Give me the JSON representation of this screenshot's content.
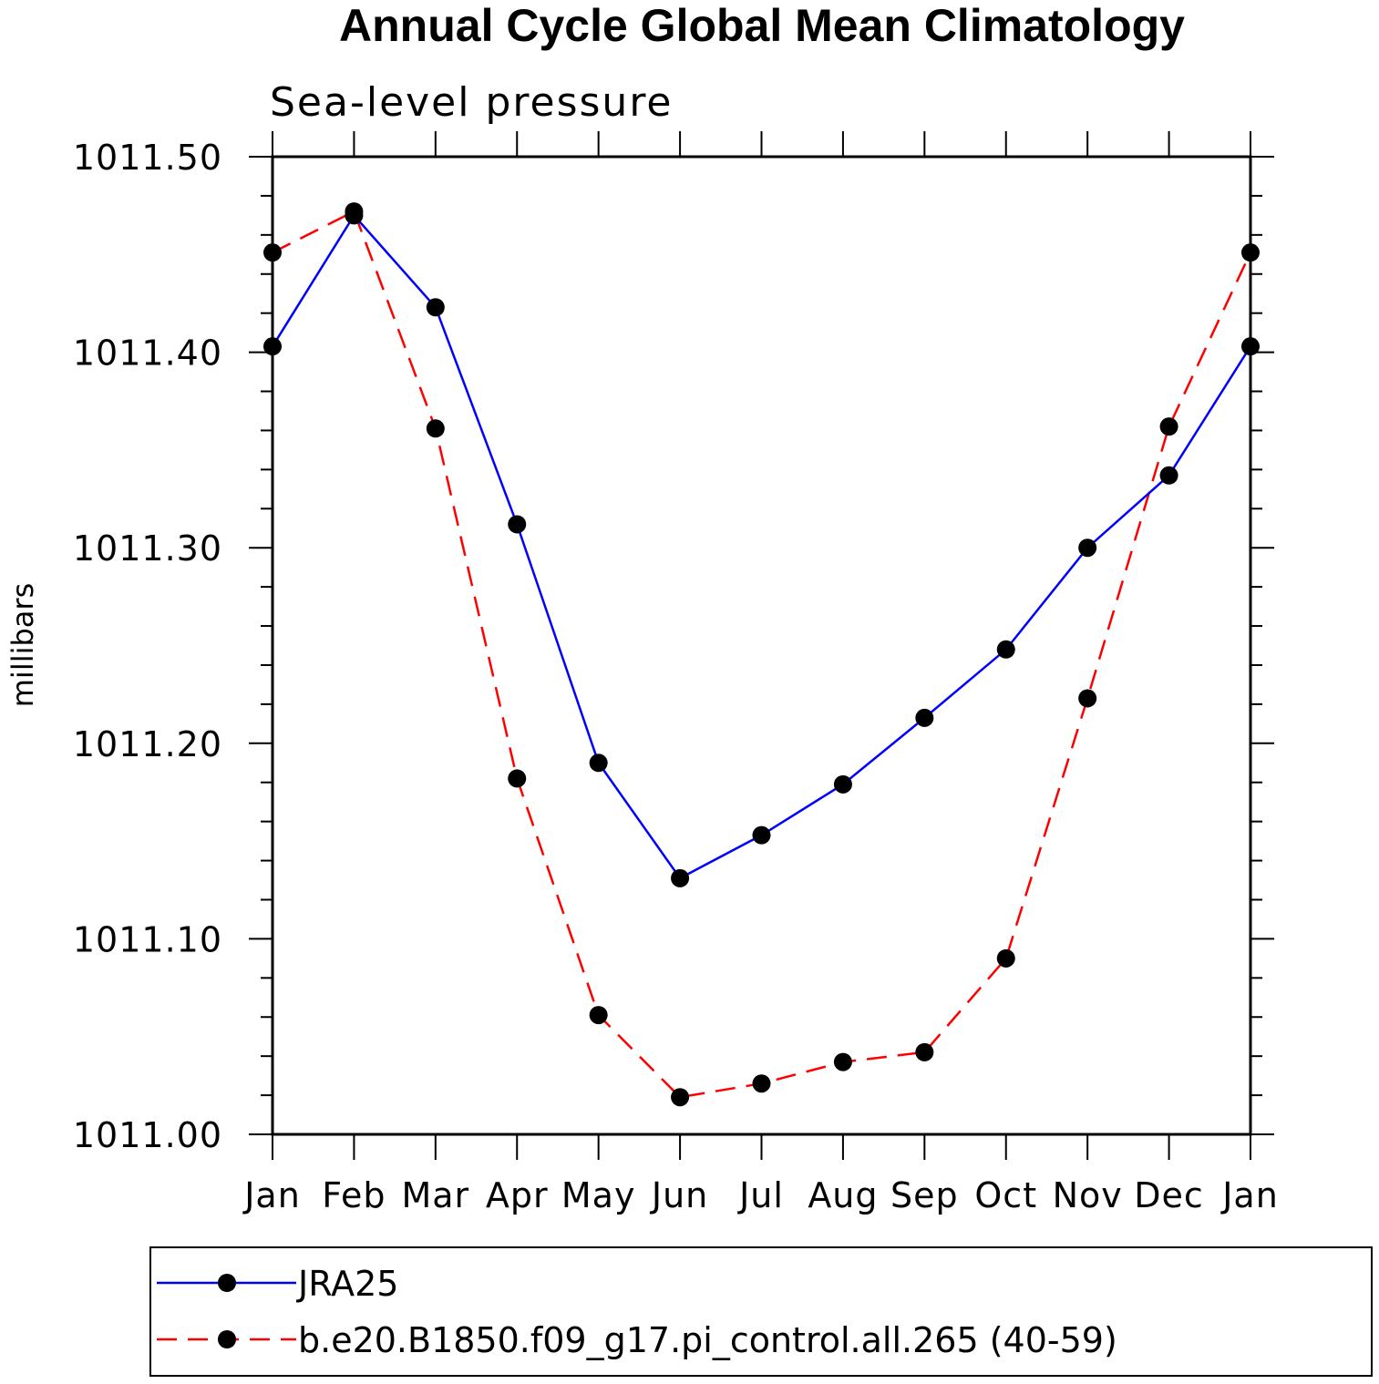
{
  "chart_data": {
    "type": "line",
    "title": "Annual Cycle Global Mean Climatology",
    "subtitle": "Sea-level pressure",
    "ylabel": "millibars",
    "xlabel": "",
    "categories": [
      "Jan",
      "Feb",
      "Mar",
      "Apr",
      "May",
      "Jun",
      "Jul",
      "Aug",
      "Sep",
      "Oct",
      "Nov",
      "Dec",
      "Jan"
    ],
    "ylim": [
      1011.0,
      1011.5
    ],
    "yticks": [
      "1011.00",
      "1011.10",
      "1011.20",
      "1011.30",
      "1011.40",
      "1011.50"
    ],
    "y_tick_values": [
      1011.0,
      1011.1,
      1011.2,
      1011.3,
      1011.4,
      1011.5
    ],
    "grid": false,
    "legend_position": "bottom",
    "series": [
      {
        "name": "JRA25",
        "color": "#0000ff",
        "line_style": "solid",
        "values": [
          1011.403,
          1011.47,
          1011.423,
          1011.312,
          1011.19,
          1011.131,
          1011.153,
          1011.179,
          1011.213,
          1011.248,
          1011.3,
          1011.337,
          1011.403
        ]
      },
      {
        "name": "b.e20.B1850.f09_g17.pi_control.all.265 (40-59)",
        "color": "#ff0000",
        "line_style": "dashed",
        "values": [
          1011.451,
          1011.472,
          1011.361,
          1011.182,
          1011.061,
          1011.019,
          1011.026,
          1011.037,
          1011.042,
          1011.09,
          1011.223,
          1011.362,
          1011.451
        ]
      }
    ]
  }
}
